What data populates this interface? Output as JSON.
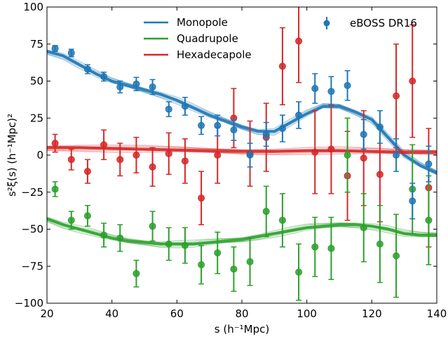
{
  "chart_data": {
    "type": "scatter",
    "xlabel": "s (h⁻¹Mpc)",
    "ylabel": "s²ξ(s) (h⁻¹Mpc)²",
    "xlim": [
      20,
      140
    ],
    "ylim": [
      -100,
      100
    ],
    "xticks": [
      20,
      40,
      60,
      80,
      100,
      120,
      140
    ],
    "yticks": [
      -100,
      -75,
      -50,
      -25,
      0,
      25,
      50,
      75,
      100
    ],
    "grid": false,
    "legend_lines_position": "top-center",
    "legend_data_position": "top-right",
    "colors": {
      "monopole": "#1f77b4",
      "quadrupole": "#2ca02c",
      "hexadecapole": "#d62728"
    },
    "line_series": [
      {
        "name": "Monopole",
        "color": "#1f77b4",
        "x": [
          20,
          25,
          30,
          35,
          40,
          45,
          50,
          55,
          60,
          65,
          70,
          75,
          80,
          85,
          90,
          95,
          100,
          105,
          110,
          115,
          120,
          125,
          130,
          135,
          140
        ],
        "y": [
          70,
          67,
          61,
          55,
          50,
          47,
          44,
          41,
          37,
          32,
          27,
          23,
          19,
          16,
          16,
          22,
          28,
          33,
          33,
          29,
          24,
          12,
          0,
          -7,
          -12
        ]
      },
      {
        "name": "Quadrupole",
        "color": "#2ca02c",
        "x": [
          20,
          25,
          30,
          35,
          40,
          45,
          50,
          55,
          60,
          65,
          70,
          75,
          80,
          85,
          90,
          95,
          100,
          105,
          110,
          115,
          120,
          125,
          130,
          135,
          140
        ],
        "y": [
          -43,
          -47,
          -50,
          -53,
          -56,
          -58,
          -59,
          -60,
          -60,
          -60,
          -59,
          -58,
          -57,
          -55,
          -53,
          -51,
          -49,
          -48,
          -47,
          -47,
          -48,
          -50,
          -53,
          -54,
          -54
        ]
      },
      {
        "name": "Hexadecapole",
        "color": "#d62728",
        "x": [
          20,
          30,
          40,
          50,
          60,
          70,
          80,
          90,
          100,
          110,
          120,
          130,
          140
        ],
        "y": [
          5,
          5,
          4.5,
          4,
          3.5,
          3,
          2.5,
          2.5,
          3,
          3,
          2.5,
          2,
          2
        ]
      }
    ],
    "data_series": [
      {
        "name": "eBOSS DR16",
        "color": "#1f77b4",
        "x": [
          22.5,
          27.5,
          32.5,
          37.5,
          42.5,
          47.5,
          52.5,
          57.5,
          62.5,
          67.5,
          72.5,
          77.5,
          82.5,
          87.5,
          92.5,
          97.5,
          102.5,
          107.5,
          112.5,
          117.5,
          122.5,
          127.5,
          132.5,
          137.5
        ],
        "y": [
          72,
          69,
          58,
          53,
          46,
          48,
          46,
          31,
          33,
          20,
          20,
          17,
          0,
          14,
          18,
          27,
          45,
          43,
          47,
          14,
          19,
          0,
          -31,
          -6
        ],
        "err": [
          2,
          2.5,
          3,
          3,
          4,
          4.5,
          5,
          5,
          6,
          6,
          7,
          7,
          8,
          8,
          9,
          9,
          10,
          10,
          10,
          10,
          11,
          11,
          12,
          12
        ]
      },
      {
        "name": "",
        "color": "#2ca02c",
        "x": [
          22.5,
          27.5,
          32.5,
          37.5,
          42.5,
          47.5,
          52.5,
          57.5,
          62.5,
          67.5,
          72.5,
          77.5,
          82.5,
          87.5,
          92.5,
          97.5,
          102.5,
          107.5,
          112.5,
          117.5,
          122.5,
          127.5,
          132.5,
          137.5
        ],
        "y": [
          -23,
          -44,
          -41,
          -54,
          -56,
          -80,
          -48,
          -60,
          -61,
          -74,
          -66,
          -77,
          -72,
          -38,
          -44,
          -79,
          -62,
          -63,
          0,
          -49,
          -60,
          -68,
          -23,
          -44
        ],
        "err": [
          5,
          6,
          7,
          8,
          9,
          9,
          10,
          11,
          12,
          13,
          14,
          15,
          16,
          17,
          18,
          19,
          20,
          21,
          25,
          23,
          26,
          28,
          30,
          30
        ]
      },
      {
        "name": "",
        "color": "#d62728",
        "x": [
          22.5,
          27.5,
          32.5,
          37.5,
          42.5,
          47.5,
          52.5,
          57.5,
          62.5,
          67.5,
          72.5,
          77.5,
          82.5,
          87.5,
          92.5,
          97.5,
          102.5,
          107.5,
          112.5,
          117.5,
          122.5,
          127.5,
          132.5,
          137.5
        ],
        "y": [
          8,
          -3,
          -11,
          7,
          -3,
          0,
          -8,
          1,
          -4,
          -29,
          0,
          25,
          1,
          12,
          60,
          77,
          2,
          4,
          -14,
          -2,
          -13,
          40,
          50,
          -22
        ],
        "err": [
          6,
          7,
          8,
          10,
          11,
          12,
          13,
          14,
          15,
          18,
          19,
          20,
          22,
          23,
          26,
          28,
          28,
          30,
          30,
          32,
          32,
          35,
          38,
          40
        ]
      }
    ],
    "legend": {
      "lines": [
        "Monopole",
        "Quadrupole",
        "Hexadecapole"
      ],
      "data": "eBOSS DR16"
    }
  }
}
